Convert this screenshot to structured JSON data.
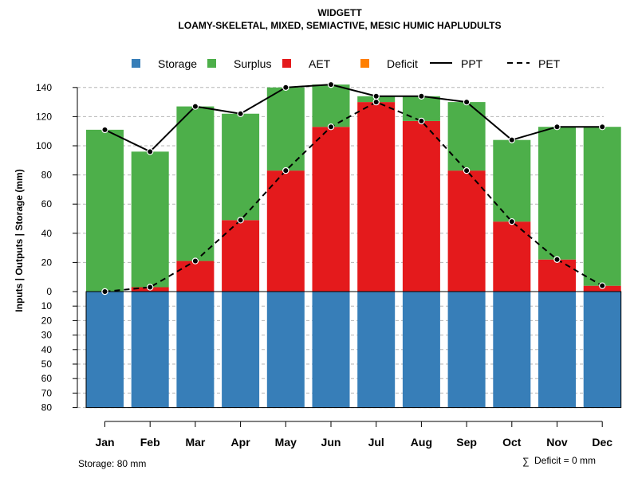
{
  "chart_data": {
    "type": "bar",
    "title": "WIDGETT",
    "subtitle": "LOAMY-SKELETAL, MIXED, SEMIACTIVE, MESIC HUMIC HAPLUDULTS",
    "ylabel": "Inputs | Outputs | Storage    (mm)",
    "categories": [
      "Jan",
      "Feb",
      "Mar",
      "Apr",
      "May",
      "Jun",
      "Jul",
      "Aug",
      "Sep",
      "Oct",
      "Nov",
      "Dec"
    ],
    "series": [
      {
        "name": "Storage",
        "color": "#377EB8",
        "values": [
          80,
          80,
          80,
          80,
          80,
          80,
          80,
          80,
          80,
          80,
          80,
          80
        ]
      },
      {
        "name": "AET",
        "color": "#E41A1C",
        "values": [
          0,
          3,
          21,
          49,
          83,
          113,
          130,
          117,
          83,
          48,
          22,
          4
        ]
      },
      {
        "name": "Surplus",
        "color": "#4DAF4A",
        "values": [
          111,
          93,
          106,
          73,
          57,
          29,
          4,
          17,
          47,
          56,
          91,
          109
        ]
      },
      {
        "name": "Deficit",
        "color": "#FF7F00",
        "values": [
          0,
          0,
          0,
          0,
          0,
          0,
          0,
          0,
          0,
          0,
          0,
          0
        ]
      }
    ],
    "lines": [
      {
        "name": "PPT",
        "style": "solid",
        "values": [
          111,
          96,
          127,
          122,
          140,
          142,
          134,
          134,
          130,
          104,
          113,
          113
        ]
      },
      {
        "name": "PET",
        "style": "dashed",
        "values": [
          0,
          3,
          21,
          49,
          83,
          113,
          130,
          117,
          83,
          48,
          22,
          4
        ]
      }
    ],
    "ylim": [
      -80,
      140
    ],
    "y_ticks_upper": [
      0,
      20,
      40,
      60,
      80,
      100,
      120,
      140
    ],
    "y_ticks_lower": [
      10,
      20,
      30,
      40,
      50,
      60,
      70,
      80
    ],
    "legend": {
      "placement": "top-center",
      "items": [
        {
          "label": "Storage",
          "kind": "box",
          "color": "#377EB8"
        },
        {
          "label": "Surplus",
          "kind": "box",
          "color": "#4DAF4A"
        },
        {
          "label": "AET",
          "kind": "box",
          "color": "#E41A1C"
        },
        {
          "label": "Deficit",
          "kind": "box",
          "color": "#FF7F00"
        },
        {
          "label": "PPT",
          "kind": "line",
          "style": "solid"
        },
        {
          "label": "PET",
          "kind": "line",
          "style": "dashed"
        }
      ]
    },
    "storage_note": "Storage: 80 mm",
    "deficit_note": "Deficit = 0 mm",
    "deficit_symbol": "∑",
    "grid": true
  }
}
